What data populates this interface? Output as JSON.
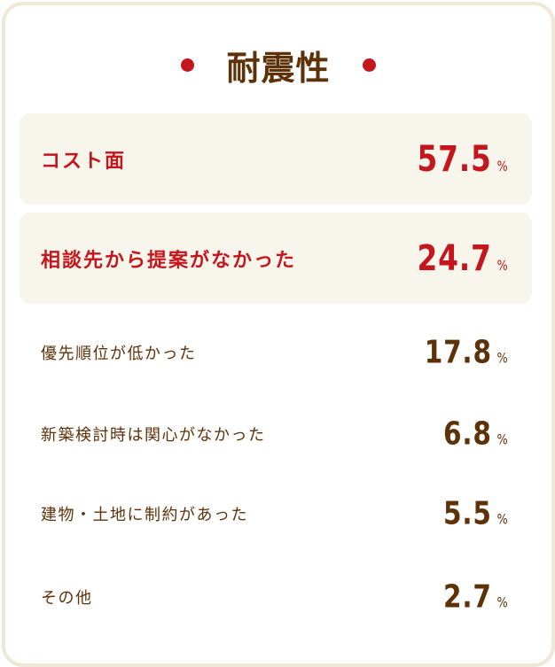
{
  "title": "耐震性",
  "colors": {
    "accent": "#c4161c",
    "text": "#5e3208",
    "highlight_bg": "#f8f5ec",
    "border": "#efe7d8"
  },
  "unit": "%",
  "items": [
    {
      "label": "コスト面",
      "value": "57.5",
      "highlight": true
    },
    {
      "label": "相談先から提案がなかった",
      "value": "24.7",
      "highlight": true
    },
    {
      "label": "優先順位が低かった",
      "value": "17.8",
      "highlight": false
    },
    {
      "label": "新築検討時は関心がなかった",
      "value": "6.8",
      "highlight": false
    },
    {
      "label": "建物・土地に制約があった",
      "value": "5.5",
      "highlight": false
    },
    {
      "label": "その他",
      "value": "2.7",
      "highlight": false
    }
  ]
}
